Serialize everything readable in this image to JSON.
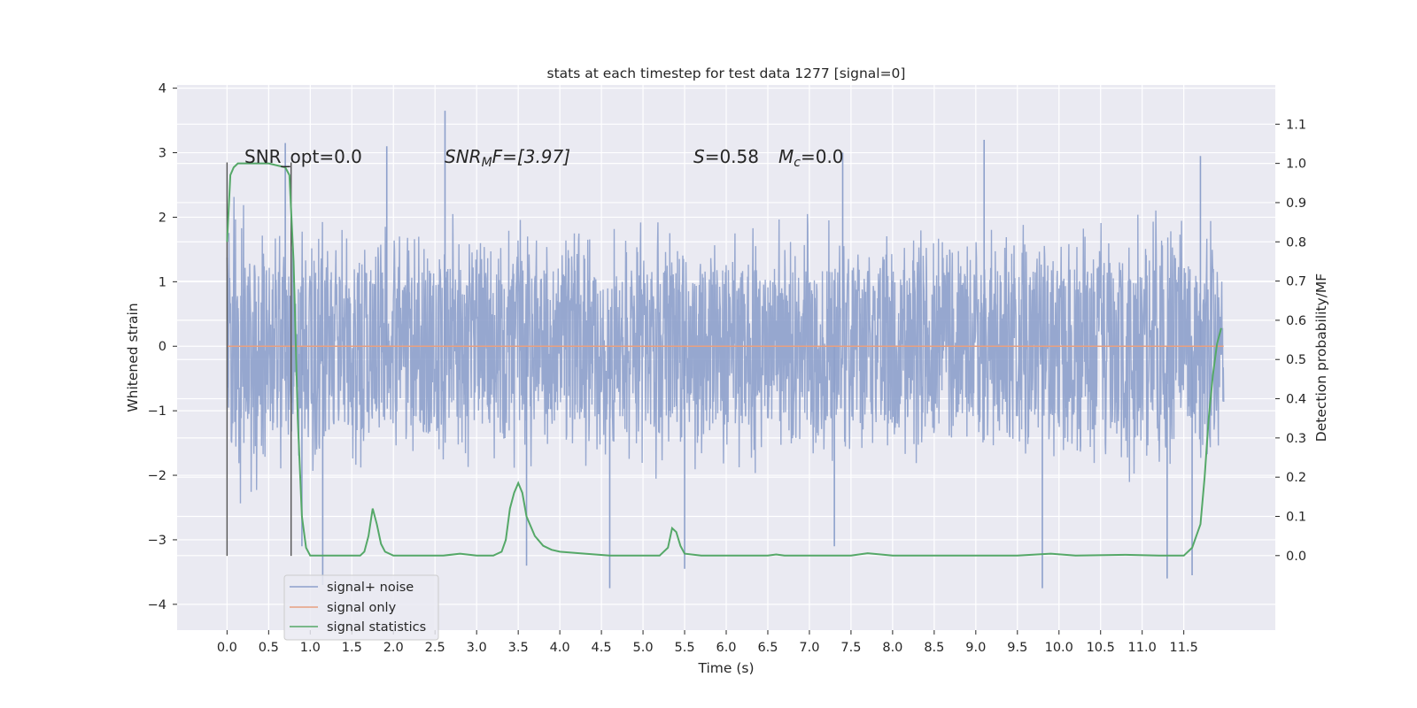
{
  "chart_data": {
    "type": "line",
    "title": "stats at each timestep for test data 1277 [signal=0]",
    "xlabel": "Time (s)",
    "ylabel": "Whitened strain",
    "ylabel_right": "Detection probability/MF",
    "xlim": [
      -0.6,
      12.6
    ],
    "ylim": [
      -4.4,
      4.05
    ],
    "ylim_right": [
      -0.19,
      1.2
    ],
    "x_ticks": [
      "0.0",
      "0.5",
      "1.0",
      "1.5",
      "2.0",
      "2.5",
      "3.0",
      "3.5",
      "4.0",
      "4.5",
      "5.0",
      "5.5",
      "6.0",
      "6.5",
      "7.0",
      "7.5",
      "8.0",
      "8.5",
      "9.0",
      "9.5",
      "10.0",
      "10.5",
      "11.0",
      "11.5"
    ],
    "y_ticks": [
      "4",
      "3",
      "2",
      "1",
      "0",
      "−1",
      "−2",
      "−3",
      "−4"
    ],
    "y_ticks_right": [
      "1.1",
      "1.0",
      "0.9",
      "0.8",
      "0.7",
      "0.6",
      "0.5",
      "0.4",
      "0.3",
      "0.2",
      "0.1",
      "0.0"
    ],
    "grid": true,
    "legend_placement": "lower-left",
    "annotations": {
      "snr_opt": "SNR_opt=0.0",
      "snr_mf_prefix": "SNR",
      "snr_mf_sub": "M",
      "snr_mf_suffix": "F=[3.97]",
      "s_letter": "S",
      "s_value": "=0.58",
      "mc_letter": "M",
      "mc_sub": "c",
      "mc_value": "=0.0"
    },
    "window_markers_x": [
      0.0,
      0.77
    ],
    "series": [
      {
        "name": "signal+ noise",
        "axis": "left",
        "color": "#8da0cb",
        "x_range": [
          0.0,
          11.98
        ],
        "envelope_upper": [
          2.8,
          2.2,
          2.0,
          2.1,
          2.0,
          2.2,
          2.1,
          2.0,
          2.1,
          2.2,
          2.0,
          2.1,
          2.1,
          2.0,
          2.2,
          2.1,
          2.0,
          2.1,
          2.2,
          2.0,
          2.1,
          2.1,
          2.2,
          2.3,
          2.0
        ],
        "envelope_lower": [
          -3.2,
          -2.1,
          -2.0,
          -2.1,
          -2.2,
          -2.0,
          -2.1,
          -2.2,
          -2.0,
          -2.1,
          -2.1,
          -2.0,
          -2.1,
          -2.2,
          -2.0,
          -2.1,
          -2.1,
          -2.0,
          -2.1,
          -2.2,
          -2.0,
          -2.1,
          -2.2,
          -2.1,
          -2.0
        ],
        "peaks": [
          {
            "x": 2.62,
            "y": 3.65
          },
          {
            "x": 0.7,
            "y": 3.15
          },
          {
            "x": 1.92,
            "y": 3.1
          },
          {
            "x": 7.4,
            "y": 3.0
          },
          {
            "x": 9.1,
            "y": 3.2
          },
          {
            "x": 11.7,
            "y": 2.95
          },
          {
            "x": 1.15,
            "y": -3.7
          },
          {
            "x": 4.6,
            "y": -3.75
          },
          {
            "x": 9.8,
            "y": -3.75
          },
          {
            "x": 11.3,
            "y": -3.6
          },
          {
            "x": 3.6,
            "y": -3.4
          },
          {
            "x": 0.9,
            "y": -3.1
          },
          {
            "x": 7.3,
            "y": -3.1
          },
          {
            "x": 11.6,
            "y": -3.55
          },
          {
            "x": 5.5,
            "y": -3.45
          }
        ]
      },
      {
        "name": "signal only",
        "axis": "left",
        "color": "#e8a080",
        "x": [
          0.0,
          11.98
        ],
        "y": [
          0.0,
          0.0
        ]
      },
      {
        "name": "signal statistics",
        "axis": "right",
        "color": "#55a868",
        "x": [
          0.0,
          0.04,
          0.08,
          0.13,
          0.2,
          0.3,
          0.5,
          0.7,
          0.75,
          0.8,
          0.85,
          0.9,
          0.95,
          1.0,
          1.2,
          1.4,
          1.6,
          1.65,
          1.7,
          1.75,
          1.8,
          1.85,
          1.9,
          2.0,
          2.3,
          2.6,
          2.8,
          3.0,
          3.2,
          3.3,
          3.35,
          3.4,
          3.45,
          3.5,
          3.55,
          3.6,
          3.7,
          3.8,
          3.9,
          4.0,
          4.3,
          4.6,
          5.0,
          5.2,
          5.3,
          5.35,
          5.4,
          5.45,
          5.5,
          5.7,
          6.0,
          6.5,
          6.6,
          6.7,
          7.0,
          7.5,
          7.7,
          8.0,
          8.5,
          9.0,
          9.5,
          9.9,
          10.2,
          10.8,
          11.2,
          11.5,
          11.6,
          11.7,
          11.75,
          11.8,
          11.85,
          11.9,
          11.95
        ],
        "y": [
          0.8,
          0.97,
          0.99,
          1.0,
          1.0,
          1.0,
          1.0,
          0.99,
          0.97,
          0.75,
          0.35,
          0.1,
          0.02,
          0.0,
          0.0,
          0.0,
          0.0,
          0.01,
          0.05,
          0.12,
          0.08,
          0.03,
          0.01,
          0.0,
          0.0,
          0.0,
          0.005,
          0.0,
          0.0,
          0.01,
          0.04,
          0.12,
          0.16,
          0.185,
          0.16,
          0.1,
          0.05,
          0.025,
          0.015,
          0.01,
          0.005,
          0.0,
          0.0,
          0.0,
          0.02,
          0.07,
          0.06,
          0.025,
          0.005,
          0.0,
          0.0,
          0.0,
          0.003,
          0.0,
          0.0,
          0.0,
          0.006,
          0.0,
          0.0,
          0.0,
          0.0,
          0.005,
          0.0,
          0.002,
          0.0,
          0.0,
          0.02,
          0.08,
          0.2,
          0.35,
          0.46,
          0.54,
          0.58
        ]
      }
    ]
  }
}
